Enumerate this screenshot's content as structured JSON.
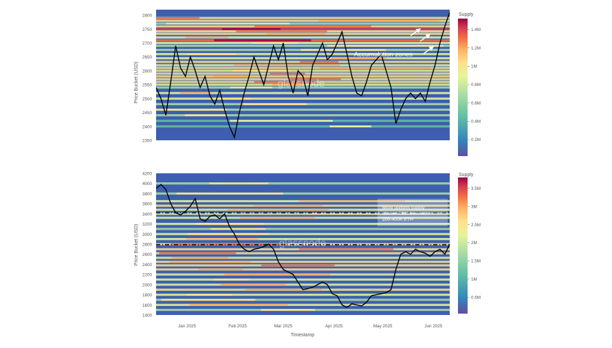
{
  "colors": {
    "colormap": [
      "#5e4fa2",
      "#3288bd",
      "#66c2a5",
      "#abdda4",
      "#e6f598",
      "#fee08b",
      "#fdae61",
      "#f46d43",
      "#d53e4f",
      "#9e0142"
    ],
    "price_line": "#000000",
    "dash_line": "#1a1a1a"
  },
  "x_axis": {
    "title": "Timestamp",
    "ticks": [
      "Jan 2025",
      "Feb 2025",
      "Mar 2025",
      "Apr 2025",
      "May 2025",
      "Jun 2025"
    ],
    "range": [
      "2024-12-13",
      "2025-06-11"
    ]
  },
  "watermark": "glassnode",
  "chart_data": [
    {
      "type": "heatmap",
      "ylabel": "Price Bucket (USD)",
      "xlabel": "",
      "ylim": [
        2350,
        2820
      ],
      "yticks": [
        2350,
        2400,
        2450,
        2500,
        2550,
        2600,
        2650,
        2700,
        2750,
        2800
      ],
      "x_ticks_shown": false,
      "colorbar": {
        "label": "Supply",
        "ticks": [
          "0.2M",
          "0.4M",
          "0.6M",
          "0.8M",
          "1M",
          "1.2M",
          "1.4M"
        ]
      },
      "annotation": "Accumulation zones",
      "bands": [
        {
          "price": 2790,
          "level": 0.55
        },
        {
          "price": 2780,
          "level": 0.5
        },
        {
          "price": 2770,
          "level": 0.35
        },
        {
          "price": 2760,
          "level": 0.55
        },
        {
          "price": 2750,
          "level": 0.85
        },
        {
          "price": 2742,
          "level": 0.6
        },
        {
          "price": 2733,
          "level": 0.5
        },
        {
          "price": 2720,
          "level": 0.45
        },
        {
          "price": 2710,
          "level": 0.75
        },
        {
          "price": 2700,
          "level": 0.4
        },
        {
          "price": 2690,
          "level": 0.3
        },
        {
          "price": 2675,
          "level": 0.35
        },
        {
          "price": 2660,
          "level": 0.4
        },
        {
          "price": 2645,
          "level": 0.45
        },
        {
          "price": 2632,
          "level": 0.55
        },
        {
          "price": 2620,
          "level": 0.45
        },
        {
          "price": 2610,
          "level": 0.5
        },
        {
          "price": 2600,
          "level": 0.4
        },
        {
          "price": 2590,
          "level": 0.55
        },
        {
          "price": 2580,
          "level": 0.5
        },
        {
          "price": 2570,
          "level": 0.6
        },
        {
          "price": 2560,
          "level": 0.55
        },
        {
          "price": 2550,
          "level": 0.45
        },
        {
          "price": 2540,
          "level": 0.35
        },
        {
          "price": 2520,
          "level": 0.45
        },
        {
          "price": 2500,
          "level": 0.4
        },
        {
          "price": 2480,
          "level": 0.35
        },
        {
          "price": 2460,
          "level": 0.3
        },
        {
          "price": 2440,
          "level": 0.3
        },
        {
          "price": 2420,
          "level": 0.25
        },
        {
          "price": 2400,
          "level": 0.2
        }
      ],
      "price_series": {
        "x": [
          "2024-12-13",
          "2024-12-16",
          "2024-12-19",
          "2024-12-22",
          "2024-12-25",
          "2024-12-28",
          "2024-12-31",
          "2025-01-03",
          "2025-01-06",
          "2025-01-09",
          "2025-01-12",
          "2025-01-15",
          "2025-01-18",
          "2025-01-21",
          "2025-01-24",
          "2025-01-27",
          "2025-01-30",
          "2025-02-02",
          "2025-02-05",
          "2025-02-08",
          "2025-02-11",
          "2025-02-14",
          "2025-02-17",
          "2025-02-20",
          "2025-02-23",
          "2025-02-26",
          "2025-03-01",
          "2025-03-04",
          "2025-03-07",
          "2025-03-10",
          "2025-03-13",
          "2025-03-16",
          "2025-03-19",
          "2025-03-22",
          "2025-03-25",
          "2025-03-28",
          "2025-03-31",
          "2025-04-03",
          "2025-04-06",
          "2025-04-09",
          "2025-04-12",
          "2025-04-15",
          "2025-04-18",
          "2025-04-21",
          "2025-04-24",
          "2025-04-27",
          "2025-04-30",
          "2025-05-03",
          "2025-05-06",
          "2025-05-09",
          "2025-05-12",
          "2025-05-15",
          "2025-05-18",
          "2025-05-21",
          "2025-05-24",
          "2025-05-27",
          "2025-05-30",
          "2025-06-02",
          "2025-06-05",
          "2025-06-08",
          "2025-06-11"
        ],
        "y": [
          2540,
          2500,
          2440,
          2560,
          2690,
          2610,
          2580,
          2650,
          2600,
          2540,
          2580,
          2510,
          2480,
          2530,
          2460,
          2400,
          2360,
          2450,
          2520,
          2580,
          2650,
          2600,
          2550,
          2620,
          2690,
          2640,
          2700,
          2580,
          2520,
          2600,
          2580,
          2510,
          2620,
          2660,
          2700,
          2640,
          2660,
          2700,
          2740,
          2660,
          2580,
          2520,
          2510,
          2560,
          2620,
          2640,
          2660,
          2600,
          2540,
          2410,
          2460,
          2500,
          2520,
          2500,
          2520,
          2490,
          2560,
          2620,
          2700,
          2760,
          2810
        ]
      }
    },
    {
      "type": "heatmap",
      "ylabel": "Price Bucket (USD)",
      "ylim": [
        1400,
        4200
      ],
      "yticks": [
        1400,
        1600,
        1800,
        2000,
        2200,
        2400,
        2600,
        2800,
        3000,
        3200,
        3400,
        3600,
        3800,
        4000,
        4200
      ],
      "colorbar": {
        "label": "Supply",
        "ticks": [
          "0.5M",
          "1M",
          "1.5M",
          "2M",
          "2.5M",
          "3M",
          "3.5M"
        ]
      },
      "annotation": "More uniform supply cluster. CBD lines with 200-400K ETH",
      "dashed_levels": [
        3420,
        2790
      ],
      "bands": [
        {
          "price": 4000,
          "level": 0.3
        },
        {
          "price": 3800,
          "level": 0.35
        },
        {
          "price": 3650,
          "level": 0.45
        },
        {
          "price": 3560,
          "level": 0.5
        },
        {
          "price": 3480,
          "level": 0.45
        },
        {
          "price": 3400,
          "level": 0.4
        },
        {
          "price": 3320,
          "level": 0.45
        },
        {
          "price": 3200,
          "level": 0.4
        },
        {
          "price": 3100,
          "level": 0.35
        },
        {
          "price": 3000,
          "level": 0.4
        },
        {
          "price": 2900,
          "level": 0.45
        },
        {
          "price": 2800,
          "level": 0.55
        },
        {
          "price": 2700,
          "level": 0.6
        },
        {
          "price": 2620,
          "level": 0.55
        },
        {
          "price": 2530,
          "level": 0.45
        },
        {
          "price": 2450,
          "level": 0.5
        },
        {
          "price": 2380,
          "level": 0.55
        },
        {
          "price": 2300,
          "level": 0.5
        },
        {
          "price": 2200,
          "level": 0.45
        },
        {
          "price": 2100,
          "level": 0.4
        },
        {
          "price": 2000,
          "level": 0.45
        },
        {
          "price": 1900,
          "level": 0.5
        },
        {
          "price": 1800,
          "level": 0.4
        },
        {
          "price": 1700,
          "level": 0.35
        },
        {
          "price": 1600,
          "level": 0.45
        },
        {
          "price": 1500,
          "level": 0.35
        }
      ],
      "price_series": {
        "x": [
          "2024-12-13",
          "2024-12-16",
          "2024-12-19",
          "2024-12-22",
          "2024-12-25",
          "2024-12-28",
          "2024-12-31",
          "2025-01-03",
          "2025-01-06",
          "2025-01-09",
          "2025-01-12",
          "2025-01-15",
          "2025-01-18",
          "2025-01-21",
          "2025-01-24",
          "2025-01-27",
          "2025-01-30",
          "2025-02-02",
          "2025-02-05",
          "2025-02-08",
          "2025-02-11",
          "2025-02-14",
          "2025-02-17",
          "2025-02-20",
          "2025-02-23",
          "2025-02-26",
          "2025-03-01",
          "2025-03-04",
          "2025-03-07",
          "2025-03-10",
          "2025-03-13",
          "2025-03-16",
          "2025-03-19",
          "2025-03-22",
          "2025-03-25",
          "2025-03-28",
          "2025-03-31",
          "2025-04-03",
          "2025-04-06",
          "2025-04-09",
          "2025-04-12",
          "2025-04-15",
          "2025-04-18",
          "2025-04-21",
          "2025-04-24",
          "2025-04-27",
          "2025-04-30",
          "2025-05-03",
          "2025-05-06",
          "2025-05-09",
          "2025-05-12",
          "2025-05-15",
          "2025-05-18",
          "2025-05-21",
          "2025-05-24",
          "2025-05-27",
          "2025-05-30",
          "2025-06-02",
          "2025-06-05",
          "2025-06-08",
          "2025-06-11"
        ],
        "y": [
          3900,
          3980,
          3880,
          3600,
          3420,
          3380,
          3450,
          3550,
          3700,
          3300,
          3250,
          3350,
          3380,
          3300,
          3400,
          3150,
          3000,
          2800,
          2700,
          2650,
          2700,
          2720,
          2750,
          2800,
          2700,
          2450,
          2300,
          2250,
          2200,
          2050,
          1900,
          1920,
          1950,
          2000,
          2050,
          2000,
          1820,
          1780,
          1600,
          1550,
          1620,
          1600,
          1580,
          1650,
          1780,
          1800,
          1820,
          1840,
          1900,
          2300,
          2600,
          2650,
          2600,
          2700,
          2650,
          2620,
          2560,
          2650,
          2700,
          2600,
          2800
        ]
      }
    }
  ]
}
